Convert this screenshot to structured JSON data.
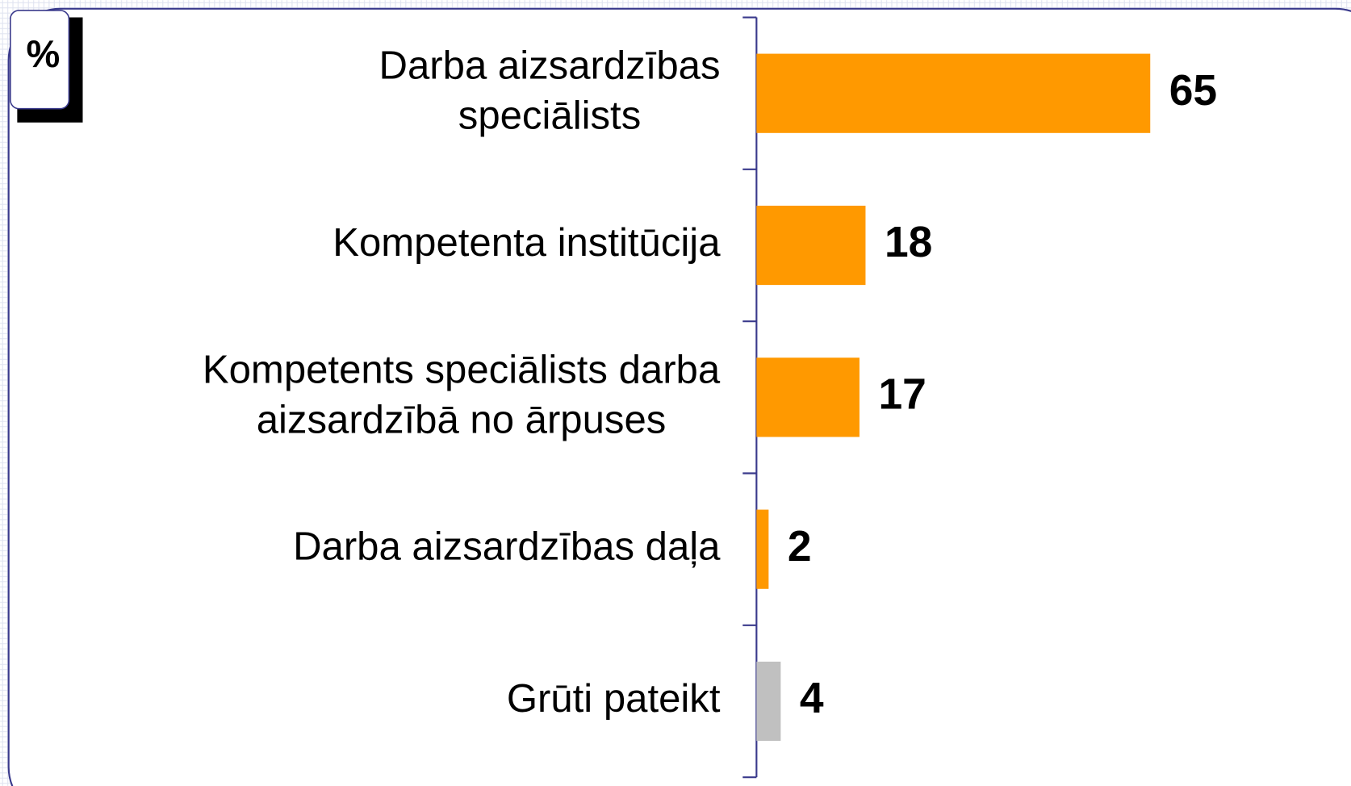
{
  "chart_data": {
    "type": "bar",
    "orientation": "horizontal",
    "unit_label": "%",
    "categories": [
      [
        "Darba aizsardzības",
        "speciālists"
      ],
      [
        "Kompetenta institūcija"
      ],
      [
        "Kompetents speciālists darba",
        "aizsardzībā no ārpuses"
      ],
      [
        "Darba aizsardzības daļa"
      ],
      [
        "Grūti pateikt"
      ]
    ],
    "values": [
      65,
      18,
      17,
      2,
      4
    ],
    "colors": [
      "#FF9900",
      "#FF9900",
      "#FF9900",
      "#FF9900",
      "#C0C0C0"
    ]
  }
}
